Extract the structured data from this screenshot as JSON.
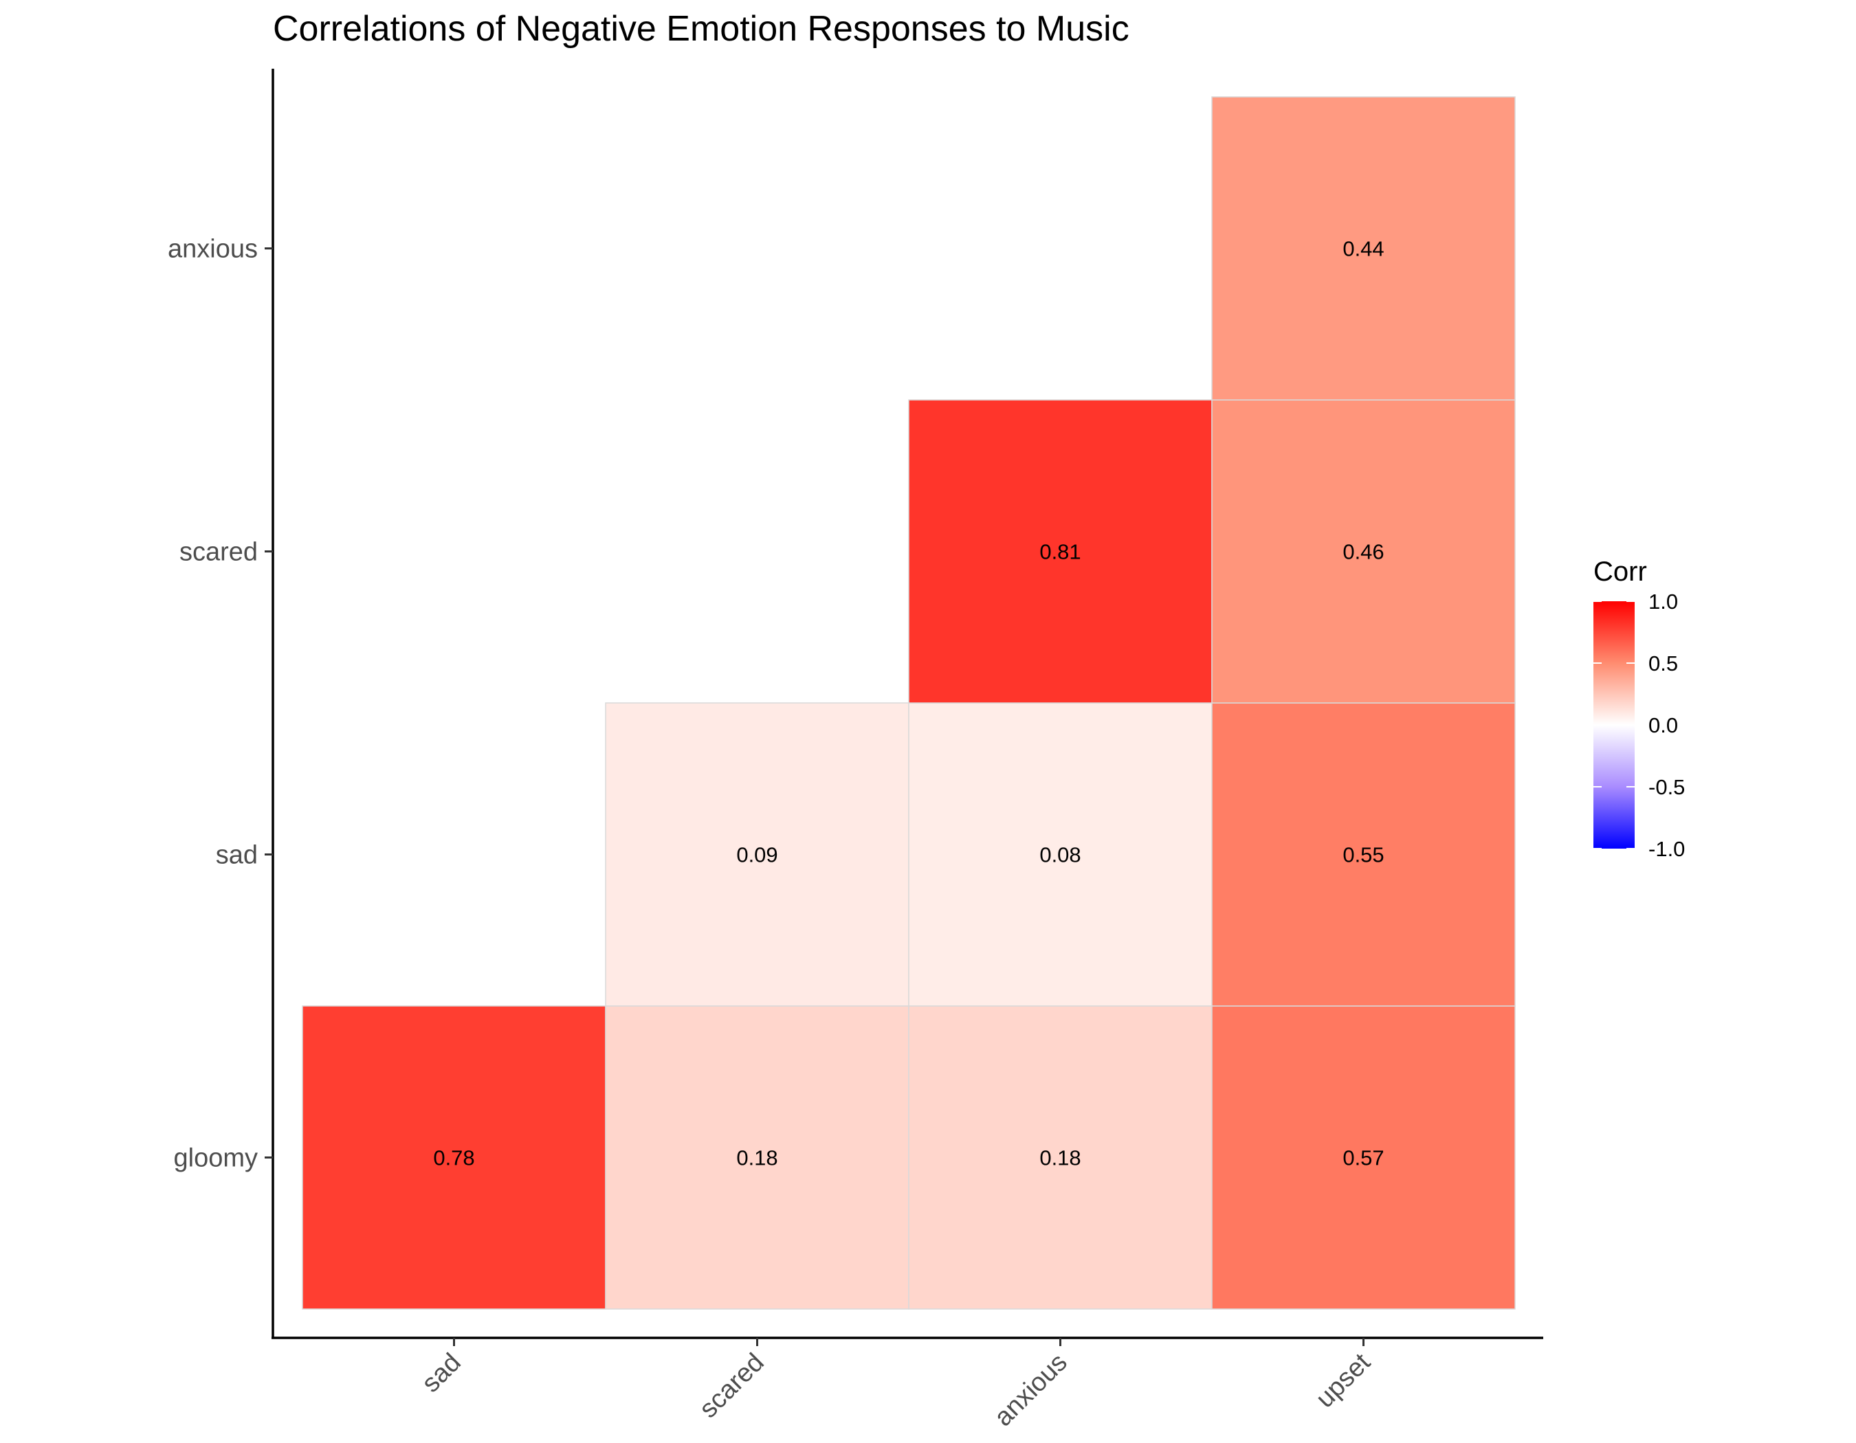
{
  "chart_data": {
    "type": "heatmap",
    "title": "Correlations of Negative Emotion Responses to Music",
    "x_categories": [
      "sad",
      "scared",
      "anxious",
      "upset"
    ],
    "y_categories": [
      "gloomy",
      "sad",
      "scared",
      "anxious"
    ],
    "cells": [
      {
        "x": "sad",
        "y": "gloomy",
        "value": 0.78,
        "label": "0.78"
      },
      {
        "x": "scared",
        "y": "gloomy",
        "value": 0.18,
        "label": "0.18"
      },
      {
        "x": "anxious",
        "y": "gloomy",
        "value": 0.18,
        "label": "0.18"
      },
      {
        "x": "upset",
        "y": "gloomy",
        "value": 0.57,
        "label": "0.57"
      },
      {
        "x": "scared",
        "y": "sad",
        "value": 0.09,
        "label": "0.09"
      },
      {
        "x": "anxious",
        "y": "sad",
        "value": 0.08,
        "label": "0.08"
      },
      {
        "x": "upset",
        "y": "sad",
        "value": 0.55,
        "label": "0.55"
      },
      {
        "x": "anxious",
        "y": "scared",
        "value": 0.81,
        "label": "0.81"
      },
      {
        "x": "upset",
        "y": "scared",
        "value": 0.46,
        "label": "0.46"
      },
      {
        "x": "upset",
        "y": "anxious",
        "value": 0.44,
        "label": "0.44"
      }
    ],
    "legend": {
      "title": "Corr",
      "position": "right",
      "range": [
        -1,
        1
      ],
      "ticks": [
        1.0,
        0.5,
        0.0,
        -0.5,
        -1.0
      ],
      "tick_labels": [
        "1.0",
        "0.5",
        "0.0",
        "-0.5",
        "-1.0"
      ],
      "colors": {
        "low": "#0000ff",
        "mid": "#ffffff",
        "high": "#ff0000"
      }
    },
    "grid": false
  }
}
